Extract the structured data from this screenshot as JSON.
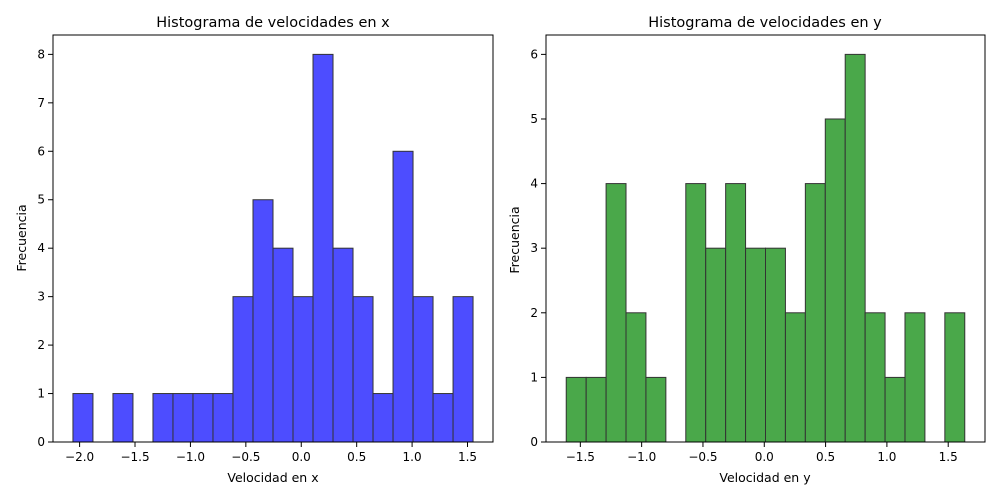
{
  "chart_data": [
    {
      "type": "bar",
      "title": "Histograma de velocidades en x",
      "xlabel": "Velocidad en x",
      "ylabel": "Frecuencia",
      "color": "#4d4dff",
      "edgecolor": "#333333",
      "bin_start": -2.06,
      "bin_width": 0.1805,
      "values": [
        1,
        0,
        1,
        0,
        1,
        1,
        1,
        1,
        3,
        5,
        4,
        3,
        8,
        4,
        3,
        1,
        6,
        3,
        1,
        3
      ],
      "xlim": [
        -2.24,
        1.73
      ],
      "ylim": [
        0,
        8.4
      ],
      "xticks": [
        -2.0,
        -1.5,
        -1.0,
        -0.5,
        0.0,
        0.5,
        1.0,
        1.5
      ],
      "xtick_labels": [
        "−2.0",
        "−1.5",
        "−1.0",
        "−0.5",
        "0.0",
        "0.5",
        "1.0",
        "1.5"
      ],
      "yticks": [
        0,
        1,
        2,
        3,
        4,
        5,
        6,
        7,
        8
      ],
      "ytick_labels": [
        "0",
        "1",
        "2",
        "3",
        "4",
        "5",
        "6",
        "7",
        "8"
      ],
      "grid": false
    },
    {
      "type": "bar",
      "title": "Histograma de velocidades en y",
      "xlabel": "Velocidad en y",
      "ylabel": "Frecuencia",
      "color": "#4aa84a",
      "edgecolor": "#333333",
      "bin_start": -1.615,
      "bin_width": 0.1625,
      "values": [
        1,
        1,
        4,
        2,
        1,
        0,
        4,
        3,
        4,
        3,
        3,
        2,
        4,
        5,
        6,
        2,
        1,
        2,
        0,
        2
      ],
      "xlim": [
        -1.78,
        1.8
      ],
      "ylim": [
        0,
        6.3
      ],
      "xticks": [
        -1.5,
        -1.0,
        -0.5,
        0.0,
        0.5,
        1.0,
        1.5
      ],
      "xtick_labels": [
        "−1.5",
        "−1.0",
        "−0.5",
        "0.0",
        "0.5",
        "1.0",
        "1.5"
      ],
      "yticks": [
        0,
        1,
        2,
        3,
        4,
        5,
        6
      ],
      "ytick_labels": [
        "0",
        "1",
        "2",
        "3",
        "4",
        "5",
        "6"
      ],
      "grid": false
    }
  ]
}
